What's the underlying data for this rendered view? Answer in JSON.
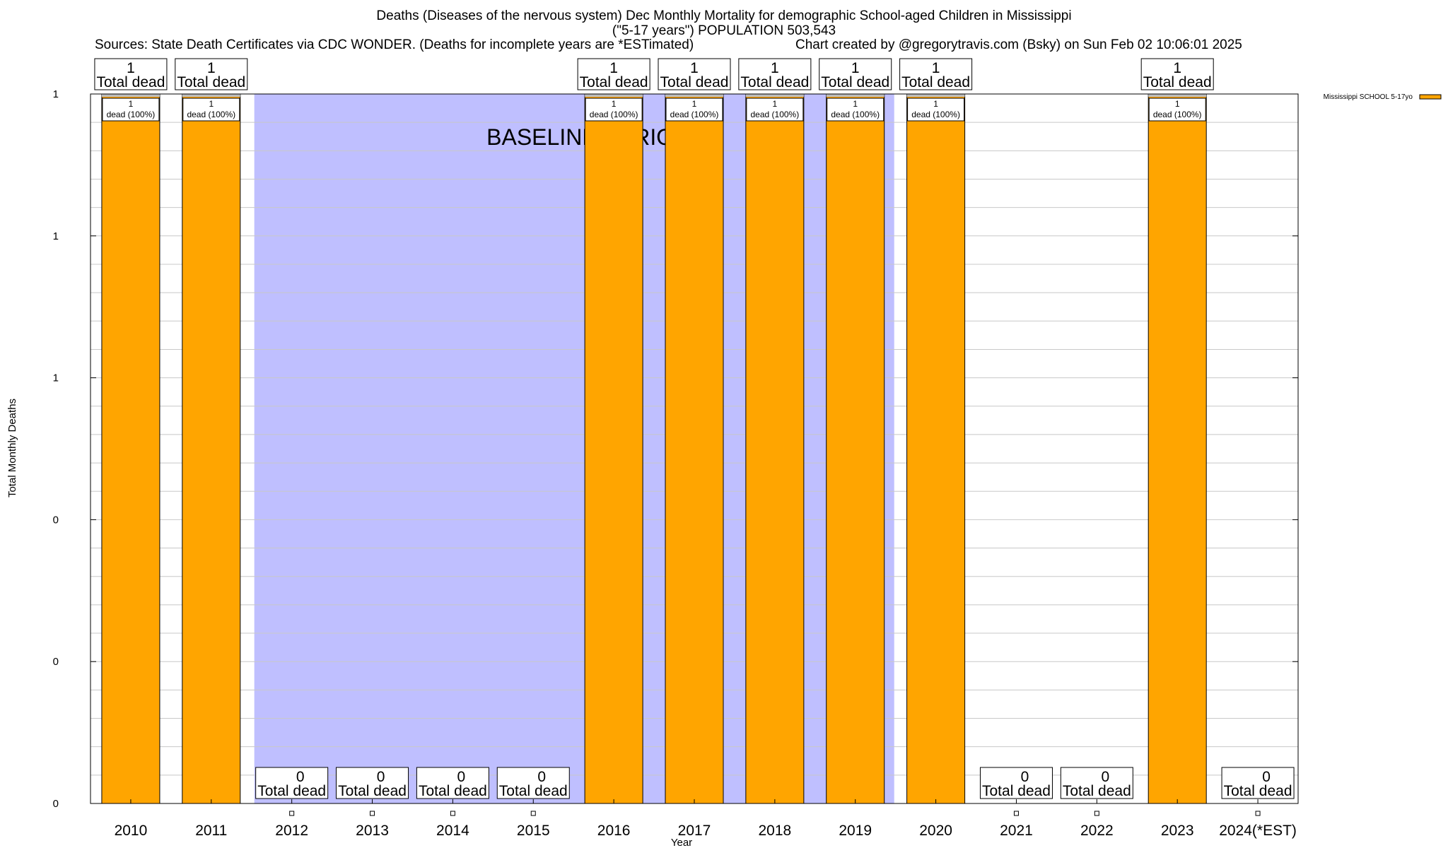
{
  "header": {
    "title_line1": "Deaths (Diseases of the nervous system) Dec Monthly Mortality for demographic School-aged Children in Mississippi",
    "title_line2": "(\"5-17 years\") POPULATION 503,543",
    "sources": "Sources: State Death Certificates via CDC WONDER. (Deaths for incomplete years are *ESTimated)",
    "credit": "Chart created by @gregorytravis.com (Bsky) on Sun Feb 02 10:06:01 2025"
  },
  "chart_data": {
    "type": "bar",
    "xlabel": "Year",
    "ylabel": "Total Monthly Deaths",
    "ylim": [
      0,
      1
    ],
    "y_tick_labels": [
      "0",
      "0",
      "0",
      "1",
      "1",
      "1"
    ],
    "grid": true,
    "legend_position": "top-right",
    "categories": [
      "2010",
      "2011",
      "2012",
      "2013",
      "2014",
      "2015",
      "2016",
      "2017",
      "2018",
      "2019",
      "2020",
      "2021",
      "2022",
      "2023",
      "2024(*EST)"
    ],
    "series": [
      {
        "name": "Mississippi SCHOOL 5-17yo",
        "color": "#FFA500",
        "values": [
          1,
          1,
          0,
          0,
          0,
          0,
          1,
          1,
          1,
          1,
          1,
          0,
          0,
          1,
          0
        ]
      }
    ],
    "total_label_text": "Total dead",
    "segment_label_text": "dead (100%)",
    "baseline": {
      "label": "BASELINE PERIOD",
      "color": "#BFBFFF",
      "start": "2012",
      "end": "2019"
    }
  }
}
